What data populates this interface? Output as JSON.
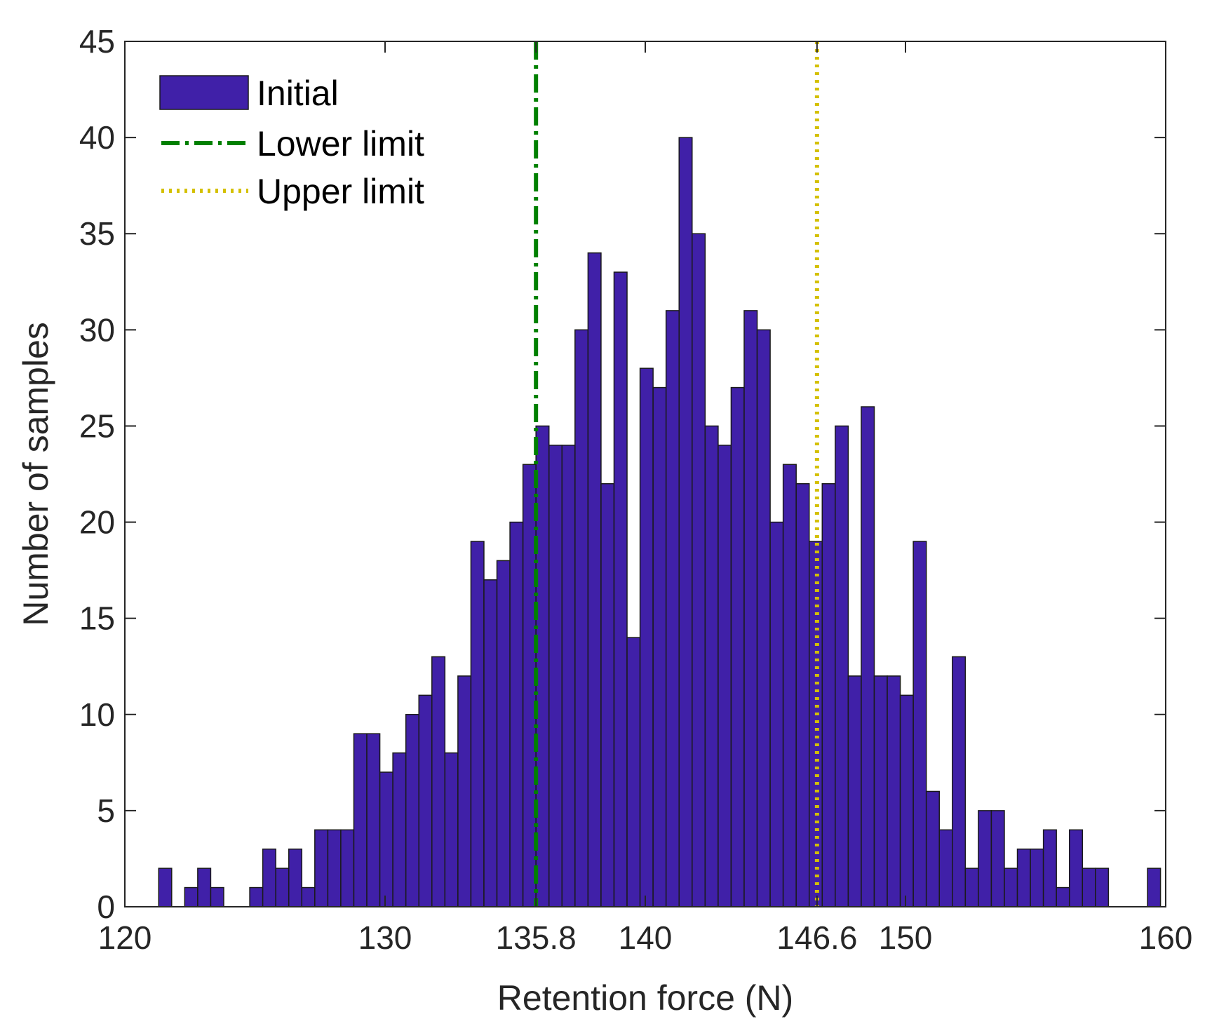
{
  "chart_data": {
    "type": "bar",
    "xlabel": "Retention force (N)",
    "ylabel": "Number of samples",
    "xlim": [
      120,
      160
    ],
    "ylim": [
      0,
      45
    ],
    "x_ticks": [
      120,
      130,
      135.8,
      140,
      146.6,
      150,
      160
    ],
    "x_tick_labels": [
      "120",
      "130",
      "135.8",
      "140",
      "146.6",
      "150",
      "160"
    ],
    "y_ticks": [
      0,
      5,
      10,
      15,
      20,
      25,
      30,
      35,
      40,
      45
    ],
    "y_tick_labels": [
      "0",
      "5",
      "10",
      "15",
      "20",
      "25",
      "30",
      "35",
      "40",
      "45"
    ],
    "grid": false,
    "legend_position": "top-left",
    "bin_width": 0.5,
    "series": [
      {
        "name": "Initial",
        "color": "#4020a8",
        "bin_start": [
          121.3,
          121.8,
          122.3,
          122.8,
          123.3,
          123.8,
          124.3,
          124.8,
          125.3,
          125.8,
          126.3,
          126.8,
          127.3,
          127.8,
          128.3,
          128.8,
          129.3,
          129.8,
          130.3,
          130.8,
          131.3,
          131.8,
          132.3,
          132.8,
          133.3,
          133.8,
          134.3,
          134.8,
          135.3,
          135.8,
          136.3,
          136.8,
          137.3,
          137.8,
          138.3,
          138.8,
          139.3,
          139.8,
          140.3,
          140.8,
          141.3,
          141.8,
          142.3,
          142.8,
          143.3,
          143.8,
          144.3,
          144.8,
          145.3,
          145.8,
          146.3,
          146.8,
          147.3,
          147.8,
          148.3,
          148.8,
          149.3,
          149.8,
          150.3,
          150.8,
          151.3,
          151.8,
          152.3,
          152.8,
          153.3,
          153.8,
          154.3,
          154.8,
          155.3,
          155.8,
          156.3,
          156.8,
          157.3,
          157.8,
          158.3,
          158.8,
          159.3
        ],
        "values": [
          2,
          0,
          1,
          2,
          1,
          0,
          0,
          1,
          3,
          2,
          3,
          1,
          4,
          4,
          4,
          9,
          9,
          7,
          8,
          10,
          11,
          13,
          8,
          12,
          19,
          17,
          18,
          20,
          23,
          25,
          24,
          24,
          30,
          34,
          22,
          33,
          14,
          28,
          27,
          31,
          40,
          35,
          25,
          24,
          27,
          31,
          30,
          20,
          23,
          22,
          19,
          22,
          25,
          12,
          26,
          12,
          12,
          11,
          19,
          6,
          4,
          13,
          2,
          5,
          5,
          2,
          3,
          3,
          4,
          1,
          4,
          2,
          2,
          0,
          0,
          0,
          2
        ]
      }
    ],
    "reference_lines": [
      {
        "name": "Lower limit",
        "x": 135.8,
        "color": "#008000",
        "style": "dash-dot"
      },
      {
        "name": "Upper limit",
        "x": 146.6,
        "color": "#d4c000",
        "style": "dotted"
      }
    ]
  }
}
